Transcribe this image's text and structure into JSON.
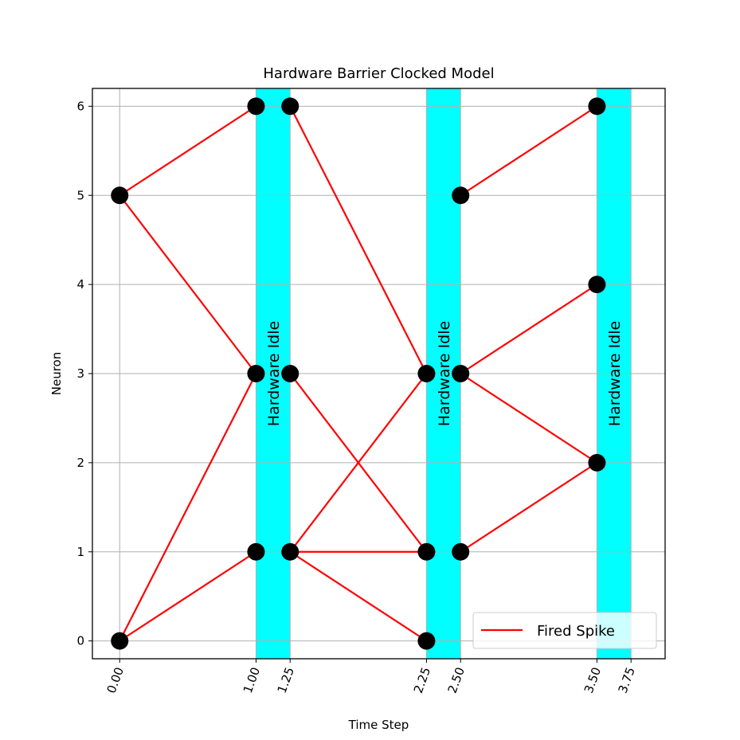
{
  "chart_data": {
    "type": "scatter",
    "title": "Hardware Barrier Clocked Model",
    "xlabel": "Time Step",
    "ylabel": "Neuron",
    "xlim": [
      -0.2,
      4.0
    ],
    "ylim": [
      -0.2,
      6.2
    ],
    "x_ticks": [
      0.0,
      1.0,
      1.25,
      2.25,
      2.5,
      3.5,
      3.75
    ],
    "x_tick_labels": [
      "0.00",
      "1.00",
      "1.25",
      "2.25",
      "2.50",
      "3.50",
      "3.75"
    ],
    "y_ticks": [
      0,
      1,
      2,
      3,
      4,
      5,
      6
    ],
    "y_tick_labels": [
      "0",
      "1",
      "2",
      "3",
      "4",
      "5",
      "6"
    ],
    "grid": true,
    "idle_bands": [
      {
        "start": 1.0,
        "end": 1.25,
        "label": "Hardware Idle",
        "color": "#00ffff"
      },
      {
        "start": 2.25,
        "end": 2.5,
        "label": "Hardware Idle",
        "color": "#00ffff"
      },
      {
        "start": 3.5,
        "end": 3.75,
        "label": "Hardware Idle",
        "color": "#00ffff"
      }
    ],
    "points": [
      {
        "x": 0.0,
        "y": 5
      },
      {
        "x": 0.0,
        "y": 0
      },
      {
        "x": 1.0,
        "y": 6
      },
      {
        "x": 1.0,
        "y": 3
      },
      {
        "x": 1.0,
        "y": 1
      },
      {
        "x": 1.25,
        "y": 6
      },
      {
        "x": 1.25,
        "y": 3
      },
      {
        "x": 1.25,
        "y": 1
      },
      {
        "x": 2.25,
        "y": 3
      },
      {
        "x": 2.25,
        "y": 1
      },
      {
        "x": 2.25,
        "y": 0
      },
      {
        "x": 2.5,
        "y": 5
      },
      {
        "x": 2.5,
        "y": 3
      },
      {
        "x": 2.5,
        "y": 1
      },
      {
        "x": 3.5,
        "y": 6
      },
      {
        "x": 3.5,
        "y": 4
      },
      {
        "x": 3.5,
        "y": 2
      }
    ],
    "spikes": [
      {
        "from": [
          0.0,
          5
        ],
        "to": [
          1.0,
          6
        ]
      },
      {
        "from": [
          0.0,
          5
        ],
        "to": [
          1.0,
          3
        ]
      },
      {
        "from": [
          0.0,
          0
        ],
        "to": [
          1.0,
          3
        ]
      },
      {
        "from": [
          0.0,
          0
        ],
        "to": [
          1.0,
          1
        ]
      },
      {
        "from": [
          1.25,
          6
        ],
        "to": [
          2.25,
          3
        ]
      },
      {
        "from": [
          1.25,
          3
        ],
        "to": [
          2.25,
          1
        ]
      },
      {
        "from": [
          1.25,
          1
        ],
        "to": [
          2.25,
          3
        ]
      },
      {
        "from": [
          1.25,
          1
        ],
        "to": [
          2.25,
          1
        ]
      },
      {
        "from": [
          1.25,
          1
        ],
        "to": [
          2.25,
          0
        ]
      },
      {
        "from": [
          2.5,
          5
        ],
        "to": [
          3.5,
          6
        ]
      },
      {
        "from": [
          2.5,
          3
        ],
        "to": [
          3.5,
          4
        ]
      },
      {
        "from": [
          2.5,
          3
        ],
        "to": [
          3.5,
          2
        ]
      },
      {
        "from": [
          2.5,
          1
        ],
        "to": [
          3.5,
          2
        ]
      }
    ],
    "spike_color": "#ff0000",
    "point_color": "#000000",
    "legend": {
      "label": "Fired Spike",
      "position": "lower-right"
    }
  }
}
